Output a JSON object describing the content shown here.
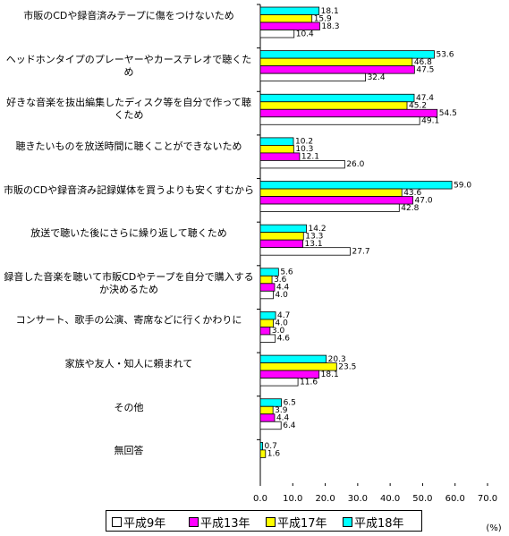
{
  "chart_data": {
    "type": "bar",
    "orientation": "horizontal",
    "categories": [
      "市販のCDや録音済みテープに傷をつけないため",
      "ヘッドホンタイプのプレーヤーやカーステレオで聴くため",
      "好きな音楽を抜出編集したディスク等を自分で作って聴くため",
      "聴きたいものを放送時間に聴くことができないため",
      "市販のCDや録音済み記録媒体を買うよりも安くすむから",
      "放送で聴いた後にさらに繰り返して聴くため",
      "録音した音楽を聴いて市販CDやテープを自分で購入するか決めるため",
      "コンサート、歌手の公演、寄席などに行くかわりに",
      "家族や友人・知人に頼まれて",
      "その他",
      "無回答"
    ],
    "series": [
      {
        "name": "平成9年",
        "color": "#ffffff",
        "values": [
          10.4,
          32.4,
          49.1,
          26.0,
          42.8,
          27.7,
          4.0,
          4.6,
          11.6,
          6.4,
          null
        ],
        "value_labels": [
          "10.4",
          "32.4",
          "49.1",
          "26.0",
          "42.8",
          "27.7",
          "4.0",
          "4.6",
          "11.6",
          "6.4",
          null
        ]
      },
      {
        "name": "平成13年",
        "color": "#ff00ff",
        "values": [
          18.3,
          47.5,
          54.5,
          12.1,
          47.0,
          13.1,
          4.4,
          3.0,
          18.1,
          4.4,
          null
        ],
        "value_labels": [
          "18.3",
          "47.5",
          "54.5",
          "12.1",
          "47.0",
          "13.1",
          "4.4",
          "3.0",
          "18.1",
          "4.4",
          null
        ]
      },
      {
        "name": "平成17年",
        "color": "#ffff00",
        "values": [
          15.9,
          46.8,
          45.2,
          10.3,
          43.6,
          13.3,
          3.6,
          4.0,
          23.5,
          3.9,
          1.6
        ],
        "value_labels": [
          "15.9",
          "46.8",
          "45.2",
          "10.3",
          "43.6",
          "13.3",
          "3.6",
          "4.0",
          "23.5",
          "3.9",
          "1.6"
        ]
      },
      {
        "name": "平成18年",
        "color": "#00ffff",
        "values": [
          18.1,
          53.6,
          47.4,
          10.2,
          59.0,
          14.2,
          5.6,
          4.7,
          20.3,
          6.5,
          0.7
        ],
        "value_labels": [
          "18.1",
          "53.6",
          "47.4",
          "10.2",
          "59.0",
          "14.2",
          "5.6",
          "4.7",
          "20.3",
          "6.5",
          "0.7"
        ]
      }
    ],
    "xlim": [
      0,
      70
    ],
    "xticks": [
      {
        "value": 0,
        "label": "0.0"
      },
      {
        "value": 10,
        "label": "10.0"
      },
      {
        "value": 20,
        "label": "20.0"
      },
      {
        "value": 30,
        "label": "30.0"
      },
      {
        "value": 40,
        "label": "40.0"
      },
      {
        "value": 50,
        "label": "50.0"
      },
      {
        "value": 60,
        "label": "60.0"
      },
      {
        "value": 70,
        "label": "70.0"
      }
    ],
    "x_label": "(%)"
  }
}
